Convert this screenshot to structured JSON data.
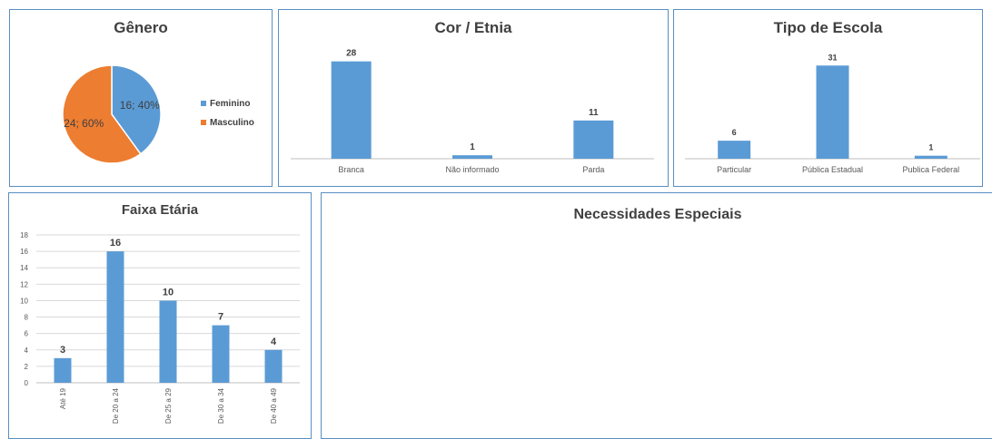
{
  "colors": {
    "bar": "#5b9bd5",
    "feminino": "#5b9bd5",
    "masculino": "#ed7d31",
    "panel_border": "#5a8fc0",
    "axis": "#bfbfbf",
    "text": "#404040"
  },
  "chart_data": [
    {
      "type": "pie",
      "title": "Gênero",
      "categories": [
        "Feminino",
        "Masculino"
      ],
      "values": [
        16,
        24
      ],
      "data_labels": [
        "16; 40%",
        "24; 60%"
      ],
      "legend": [
        "Feminino",
        "Masculino"
      ],
      "legend_position": "right"
    },
    {
      "type": "bar",
      "title": "Cor / Etnia",
      "categories": [
        "Branca",
        "Não informado",
        "Parda"
      ],
      "values": [
        28,
        1,
        11
      ],
      "data_labels": [
        "28",
        "1",
        "11"
      ],
      "ylim": [
        0,
        30
      ]
    },
    {
      "type": "bar",
      "title": "Tipo de Escola",
      "categories": [
        "Particular",
        "Pública Estadual",
        "Publica Federal"
      ],
      "values": [
        6,
        31,
        1
      ],
      "data_labels": [
        "6",
        "31",
        "1"
      ],
      "ylim": [
        0,
        35
      ]
    },
    {
      "type": "bar",
      "title": "Faixa Etária",
      "categories": [
        "Até 19",
        "De 20 a 24",
        "De 25 a 29",
        "De 30 a 34",
        "De 40 a 49"
      ],
      "values": [
        3,
        16,
        10,
        7,
        4
      ],
      "data_labels": [
        "3",
        "16",
        "10",
        "7",
        "4"
      ],
      "ylim": [
        0,
        18
      ],
      "yticks": [
        "0",
        "2",
        "4",
        "6",
        "8",
        "10",
        "12",
        "14",
        "16",
        "18"
      ],
      "grid": true
    },
    {
      "type": "bar",
      "title": "Necessidades Especiais",
      "categories": [],
      "values": []
    }
  ]
}
